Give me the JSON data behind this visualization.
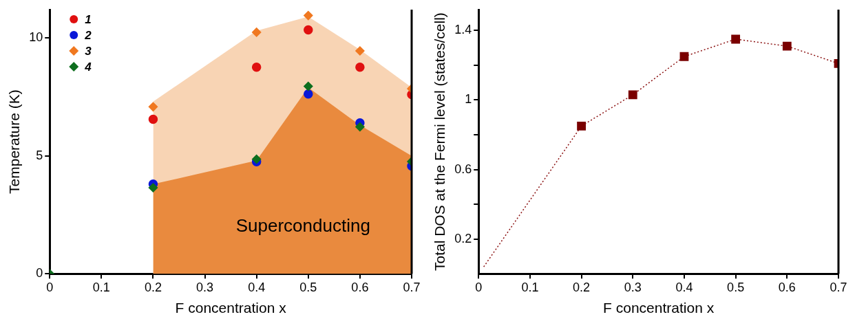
{
  "chart_data": [
    {
      "type": "scatter",
      "xlabel": "F concentration x",
      "ylabel": "Temperature (K)",
      "xlim": [
        0,
        0.7
      ],
      "ylim": [
        0,
        11.2
      ],
      "xticks": [
        0,
        0.1,
        0.2,
        0.3,
        0.4,
        0.5,
        0.6,
        0.7
      ],
      "yticks": [
        0,
        5,
        10
      ],
      "legend": "top left",
      "annotations": [
        "Superconducting"
      ],
      "series": [
        {
          "type": "area",
          "color": "#f8d4b4",
          "x": [
            0.2,
            0.4,
            0.5,
            0.6,
            0.7
          ],
          "values": [
            7.3,
            10.3,
            10.9,
            9.5,
            7.9
          ]
        },
        {
          "type": "area",
          "color": "#e98a3e",
          "x": [
            0.2,
            0.4,
            0.5,
            0.6,
            0.7
          ],
          "values": [
            3.8,
            4.8,
            7.9,
            6.3,
            5.0
          ]
        },
        {
          "name": "1",
          "type": "scatter",
          "color": "#e01010",
          "marker": "circle",
          "x": [
            0.2,
            0.4,
            0.5,
            0.6,
            0.7
          ],
          "values": [
            6.55,
            8.76,
            10.34,
            8.76,
            7.6
          ]
        },
        {
          "name": "2",
          "color": "#0a18d8",
          "marker": "circle",
          "x": [
            0.2,
            0.4,
            0.5,
            0.6,
            0.7
          ],
          "values": [
            3.8,
            4.75,
            7.62,
            6.4,
            4.57
          ]
        },
        {
          "name": "3",
          "color": "#f07820",
          "marker": "diamond",
          "x": [
            0.2,
            0.4,
            0.5,
            0.6,
            0.7
          ],
          "values": [
            7.08,
            10.24,
            10.95,
            9.45,
            7.85
          ]
        },
        {
          "name": "4",
          "color": "#0e6e1e",
          "marker": "diamond",
          "x": [
            0,
            0.2,
            0.4,
            0.5,
            0.6,
            0.7
          ],
          "values": [
            0,
            3.65,
            4.86,
            7.95,
            6.23,
            4.76
          ]
        }
      ]
    },
    {
      "type": "line",
      "xlabel": "F concentration x",
      "ylabel": "Total DOS at the Fermi level (states/cell)",
      "xlim": [
        0,
        0.7
      ],
      "ylim": [
        0,
        1.52
      ],
      "xticks": [
        0,
        0.1,
        0.2,
        0.3,
        0.4,
        0.5,
        0.6,
        0.7
      ],
      "yticks": [
        0.2,
        {
          "value": 0.4,
          "label": null
        },
        0.6,
        {
          "value": 0.8,
          "label": null
        },
        1,
        {
          "value": 1.2,
          "label": null
        },
        1.4
      ],
      "series": [
        {
          "color": "#8b1010",
          "marker": "none",
          "line_style": "dotted",
          "x": [
            0.01,
            0.2,
            0.3,
            0.4,
            0.5,
            0.6,
            0.7
          ],
          "values": [
            0.04,
            0.85,
            1.03,
            1.25,
            1.35,
            1.31,
            1.21
          ]
        },
        {
          "type": "scatter",
          "color": "#7a0000",
          "marker": "square",
          "x": [
            0.2,
            0.3,
            0.4,
            0.5,
            0.6,
            0.7
          ],
          "values": [
            0.85,
            1.03,
            1.25,
            1.35,
            1.31,
            1.21
          ]
        }
      ]
    }
  ]
}
